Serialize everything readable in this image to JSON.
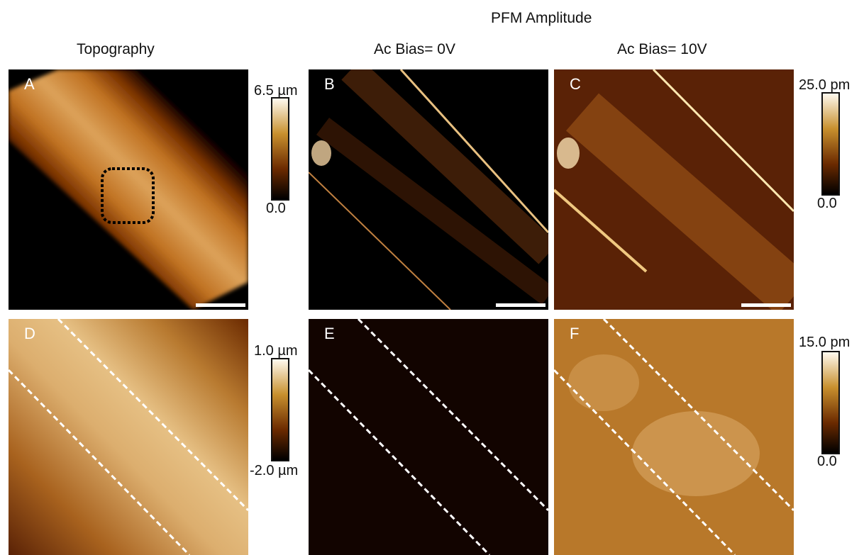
{
  "headers": {
    "super_title": "PFM Amplitude",
    "col1": "Topography",
    "col2": "Ac Bias= 0V",
    "col3": "Ac Bias= 10V"
  },
  "panels": [
    {
      "label": "A"
    },
    {
      "label": "B"
    },
    {
      "label": "C"
    },
    {
      "label": "D"
    },
    {
      "label": "E"
    },
    {
      "label": "F"
    }
  ],
  "colorbars": {
    "topo_top": {
      "max": "6.5 µm",
      "min": "0.0"
    },
    "pfm_top": {
      "max": "25.0 pm",
      "min": "0.0"
    },
    "topo_bot": {
      "max": "1.0 µm",
      "min": "-2.0 µm"
    },
    "pfm_bot": {
      "max": "15.0 pm",
      "min": "0.0"
    }
  },
  "colors": {
    "afm_dark": "#000000",
    "afm_brown": "#6b2a00",
    "afm_orange": "#c8781e",
    "afm_light": "#fff8e6",
    "overlay_white": "#ffffff",
    "roi_box": "#000000"
  }
}
